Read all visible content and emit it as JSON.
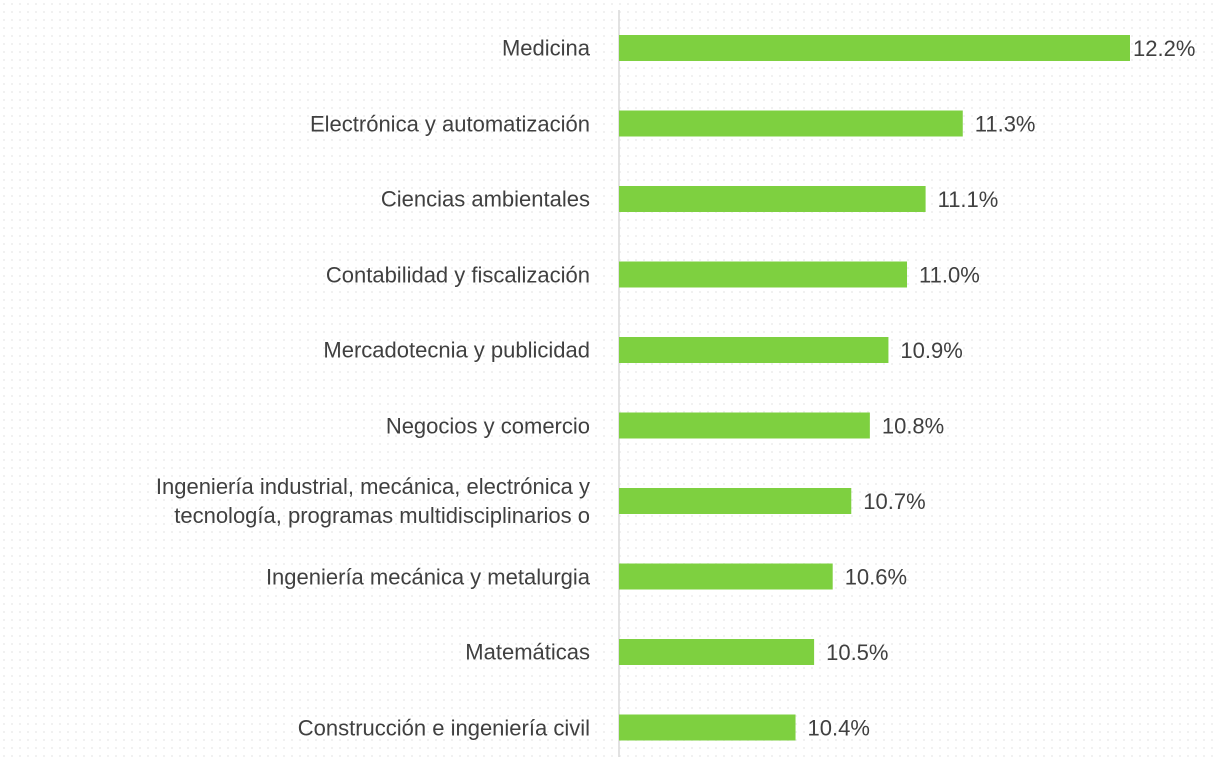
{
  "chart_data": {
    "type": "bar",
    "orientation": "horizontal",
    "categories": [
      "Medicina",
      "Electrónica y automatización",
      "Ciencias ambientales",
      "Contabilidad y fiscalización",
      "Mercadotecnia y publicidad",
      "Negocios y comercio",
      "Ingeniería industrial, mecánica, electrónica y\ntecnología, programas multidisciplinarios o",
      "Ingeniería mecánica y metalurgia",
      "Matemáticas",
      "Construcción e ingeniería civil"
    ],
    "values": [
      12.2,
      11.3,
      11.1,
      11.0,
      10.9,
      10.8,
      10.7,
      10.6,
      10.5,
      10.4
    ],
    "value_labels": [
      "12.2%",
      "11.3%",
      "11.1%",
      "11.0%",
      "10.9%",
      "10.8%",
      "10.7%",
      "10.6%",
      "10.5%",
      "10.4%"
    ],
    "color": "#7ed040",
    "xlim": [
      9.45,
      12.2
    ]
  }
}
